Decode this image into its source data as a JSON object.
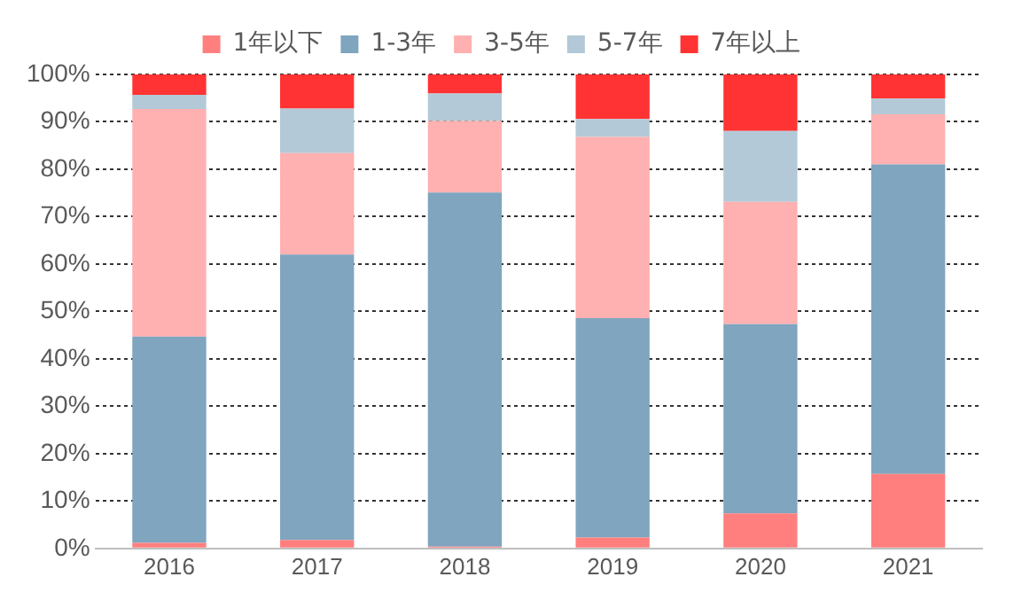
{
  "chart_data": {
    "type": "bar",
    "stacked": true,
    "categories": [
      "2016",
      "2017",
      "2018",
      "2019",
      "2020",
      "2021"
    ],
    "series": [
      {
        "name": "1年以下",
        "color": "#ff7f7f",
        "values": [
          1.2,
          1.8,
          0.4,
          2.3,
          7.4,
          15.7
        ]
      },
      {
        "name": "1-3年",
        "color": "#7fa5bf",
        "values": [
          43.5,
          60.2,
          74.7,
          46.3,
          39.9,
          65.3
        ]
      },
      {
        "name": "3-5年",
        "color": "#ffb0b0",
        "values": [
          48,
          21.4,
          15.1,
          38.2,
          25.8,
          10.6
        ]
      },
      {
        "name": "5-7年",
        "color": "#b3c9d7",
        "values": [
          3,
          9.4,
          5.8,
          3.8,
          15,
          3.3
        ]
      },
      {
        "name": "7年以上",
        "color": "#ff3333",
        "values": [
          4.3,
          7.2,
          4,
          9.4,
          11.9,
          5.1
        ]
      }
    ],
    "ylim": [
      0,
      100
    ],
    "yticks": [
      {
        "value": 0,
        "label": "0%"
      },
      {
        "value": 10,
        "label": "10%"
      },
      {
        "value": 20,
        "label": "20%"
      },
      {
        "value": 30,
        "label": "30%"
      },
      {
        "value": 40,
        "label": "40%"
      },
      {
        "value": 50,
        "label": "50%"
      },
      {
        "value": 60,
        "label": "60%"
      },
      {
        "value": 70,
        "label": "70%"
      },
      {
        "value": 80,
        "label": "80%"
      },
      {
        "value": 90,
        "label": "90%"
      },
      {
        "value": 100,
        "label": "100%"
      }
    ],
    "grid": "y",
    "legend": "top"
  }
}
